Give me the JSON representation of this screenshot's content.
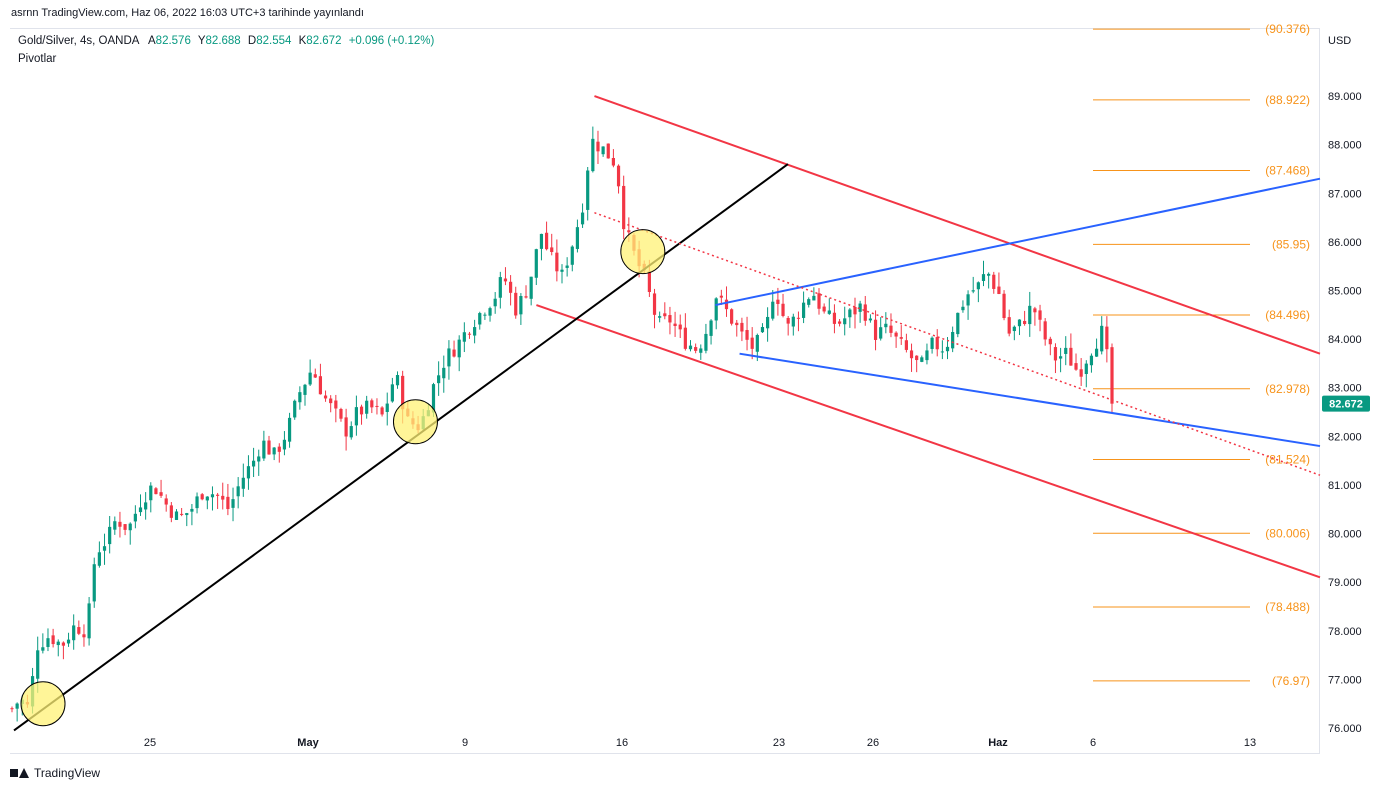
{
  "header": {
    "published_by": "asrnn TradingView.com, Haz 06, 2022 16:03 UTC+3 tarihinde yayınlandı"
  },
  "legend": {
    "symbol": "Gold/Silver, 4s, OANDA",
    "open_label": "A",
    "open_value": "82.576",
    "high_label": "Y",
    "high_value": "82.688",
    "low_label": "D",
    "low_value": "82.554",
    "close_label": "K",
    "close_value": "82.672",
    "change": "+0.096 (+0.12%)",
    "indicator": "Pivotlar"
  },
  "footer": {
    "brand": "TradingView"
  },
  "colors": {
    "up": "#089981",
    "down": "#f23645",
    "pivot": "#f7931a",
    "red_line": "#f23645",
    "blue_line": "#2962ff",
    "black_line": "#000000",
    "circle_fill": "#fff176",
    "price_badge": "#089981"
  },
  "chart_data": {
    "type": "candlestick",
    "currency": "USD",
    "ylim": [
      76.0,
      90.4
    ],
    "y_ticks": [
      "89.000",
      "88.000",
      "87.000",
      "86.000",
      "85.000",
      "84.000",
      "83.000",
      "82.000",
      "81.000",
      "80.000",
      "79.000",
      "78.000",
      "77.000",
      "76.000"
    ],
    "x_ticks": [
      "25",
      "May",
      "9",
      "16",
      "23",
      "26",
      "Haz",
      "6",
      "13"
    ],
    "last_price": "82.672",
    "pivot_levels": [
      "90.376",
      "88.922",
      "87.468",
      "85.95",
      "84.496",
      "82.978",
      "81.524",
      "80.006",
      "78.488",
      "76.97"
    ],
    "close_path": [
      [
        0,
        76.4
      ],
      [
        2,
        76.6
      ],
      [
        4,
        76.4
      ],
      [
        6,
        77.7
      ],
      [
        9,
        77.9
      ],
      [
        12,
        77.7
      ],
      [
        15,
        78.1
      ],
      [
        18,
        78.0
      ],
      [
        20,
        79.6
      ],
      [
        23,
        79.9
      ],
      [
        25,
        80.3
      ],
      [
        28,
        80.1
      ],
      [
        31,
        80.7
      ],
      [
        34,
        81.0
      ],
      [
        37,
        80.6
      ],
      [
        40,
        80.3
      ],
      [
        43,
        80.5
      ],
      [
        46,
        80.9
      ],
      [
        49,
        80.8
      ],
      [
        52,
        80.5
      ],
      [
        55,
        81.1
      ],
      [
        58,
        81.5
      ],
      [
        60,
        81.9
      ],
      [
        63,
        81.6
      ],
      [
        66,
        82.1
      ],
      [
        69,
        82.9
      ],
      [
        72,
        83.4
      ],
      [
        75,
        82.8
      ],
      [
        78,
        82.4
      ],
      [
        80,
        82.1
      ],
      [
        83,
        82.5
      ],
      [
        86,
        82.6
      ],
      [
        89,
        82.4
      ],
      [
        92,
        83.3
      ],
      [
        95,
        82.3
      ],
      [
        98,
        82.2
      ],
      [
        101,
        83.0
      ],
      [
        104,
        83.6
      ],
      [
        107,
        83.9
      ],
      [
        110,
        84.3
      ],
      [
        113,
        84.6
      ],
      [
        116,
        84.9
      ],
      [
        118,
        85.3
      ],
      [
        121,
        84.6
      ],
      [
        124,
        85.1
      ],
      [
        127,
        86.2
      ],
      [
        129,
        85.7
      ],
      [
        132,
        85.3
      ],
      [
        135,
        86.1
      ],
      [
        137,
        86.8
      ],
      [
        139,
        88.1
      ],
      [
        142,
        87.9
      ],
      [
        145,
        87.6
      ],
      [
        147,
        86.3
      ],
      [
        149,
        85.8
      ],
      [
        152,
        85.2
      ],
      [
        155,
        84.3
      ],
      [
        158,
        84.4
      ],
      [
        161,
        84.0
      ],
      [
        164,
        83.8
      ],
      [
        166,
        84.0
      ],
      [
        169,
        84.9
      ],
      [
        172,
        84.5
      ],
      [
        175,
        84.1
      ],
      [
        178,
        83.8
      ],
      [
        181,
        84.2
      ],
      [
        183,
        85.1
      ],
      [
        186,
        84.2
      ],
      [
        189,
        84.6
      ],
      [
        192,
        85.0
      ],
      [
        195,
        84.5
      ],
      [
        198,
        84.3
      ],
      [
        201,
        84.5
      ],
      [
        204,
        84.7
      ],
      [
        207,
        84.1
      ],
      [
        210,
        84.2
      ],
      [
        212,
        84.0
      ],
      [
        215,
        83.7
      ],
      [
        218,
        83.4
      ],
      [
        221,
        83.9
      ],
      [
        224,
        83.8
      ],
      [
        226,
        84.3
      ],
      [
        229,
        84.9
      ],
      [
        232,
        85.1
      ],
      [
        234,
        85.4
      ],
      [
        237,
        84.9
      ],
      [
        239,
        84.1
      ],
      [
        242,
        84.3
      ],
      [
        245,
        84.7
      ],
      [
        247,
        84.2
      ],
      [
        250,
        83.6
      ],
      [
        253,
        83.7
      ],
      [
        256,
        83.3
      ],
      [
        259,
        83.8
      ],
      [
        262,
        84.2
      ],
      [
        264,
        82.7
      ]
    ],
    "x_range": [
      0,
      270
    ],
    "marks": {
      "red_channel_top": [
        [
          120,
          89.0
        ],
        [
          270,
          83.7
        ]
      ],
      "red_channel_bottom": [
        [
          108,
          84.7
        ],
        [
          270,
          79.1
        ]
      ],
      "black_uptrend": [
        [
          0,
          75.95
        ],
        [
          160,
          87.6
        ]
      ],
      "blue_upper": [
        [
          145,
          84.7
        ],
        [
          270,
          87.3
        ]
      ],
      "blue_lower": [
        [
          150,
          83.7
        ],
        [
          270,
          81.8
        ]
      ],
      "red_dotted": [
        [
          120,
          86.6
        ],
        [
          270,
          81.2
        ]
      ],
      "circles": [
        [
          6,
          76.5
        ],
        [
          83,
          82.3
        ],
        [
          130,
          85.8
        ]
      ]
    }
  }
}
